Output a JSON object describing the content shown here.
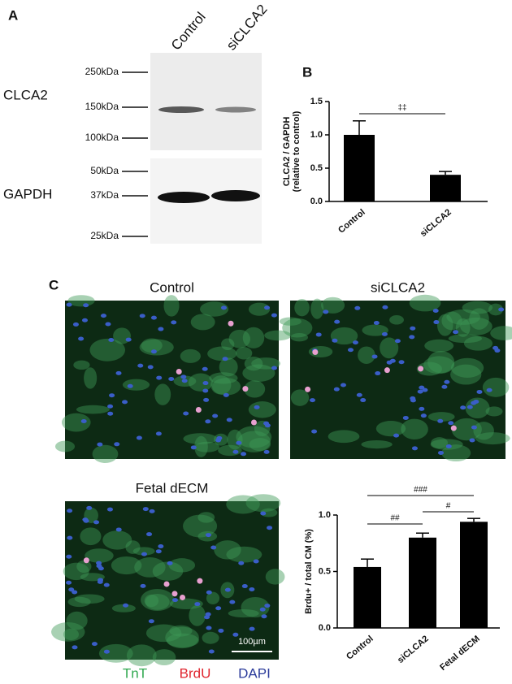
{
  "panel_labels": [
    "A",
    "B",
    "C"
  ],
  "blot": {
    "lanes": [
      "Control",
      "siCLCA2"
    ],
    "proteins": [
      "CLCA2",
      "GAPDH"
    ],
    "markers": [
      "250kDa",
      "150kDa",
      "100kDa",
      "50kDa",
      "37kDa",
      "25kDa"
    ]
  },
  "chart_data": [
    {
      "type": "bar",
      "ylabel": [
        "CLCA2 / GAPDH",
        "(relative to control)"
      ],
      "categories": [
        "Control",
        "siCLCA2"
      ],
      "values": [
        1.0,
        0.4
      ],
      "errors": [
        0.21,
        0.05
      ],
      "color": "#000000",
      "ylim": [
        0,
        1.5
      ],
      "yticks": [
        {
          "value": 0,
          "label": "0.0"
        },
        0.5,
        {
          "value": 1,
          "label": "1.0"
        },
        1.5
      ],
      "annotations": [
        "‡‡"
      ]
    },
    {
      "type": "bar",
      "ylabel": [
        "Brdu+ / total CM (%)"
      ],
      "categories": [
        "Control",
        "siCLCA2",
        "Fetal dECM"
      ],
      "values": [
        0.54,
        0.8,
        0.94
      ],
      "errors": [
        0.07,
        0.04,
        0.03
      ],
      "color": "#000000",
      "ylim": [
        0,
        1.0
      ],
      "yticks": [
        {
          "value": 0,
          "label": "0.0"
        },
        0.5,
        {
          "value": 1,
          "label": "1.0"
        }
      ],
      "annotations": [
        "##",
        "#",
        "###"
      ]
    }
  ],
  "images": [
    {
      "title": "Control"
    },
    {
      "title": "siCLCA2"
    },
    {
      "title": "Fetal dECM",
      "scale_bar": "100µm"
    }
  ],
  "stain_legend": [
    {
      "name": "TnT",
      "color": "#2fa84f"
    },
    {
      "name": "BrdU",
      "color": "#e0262f"
    },
    {
      "name": "DAPI",
      "color": "#2a3a9a"
    }
  ]
}
